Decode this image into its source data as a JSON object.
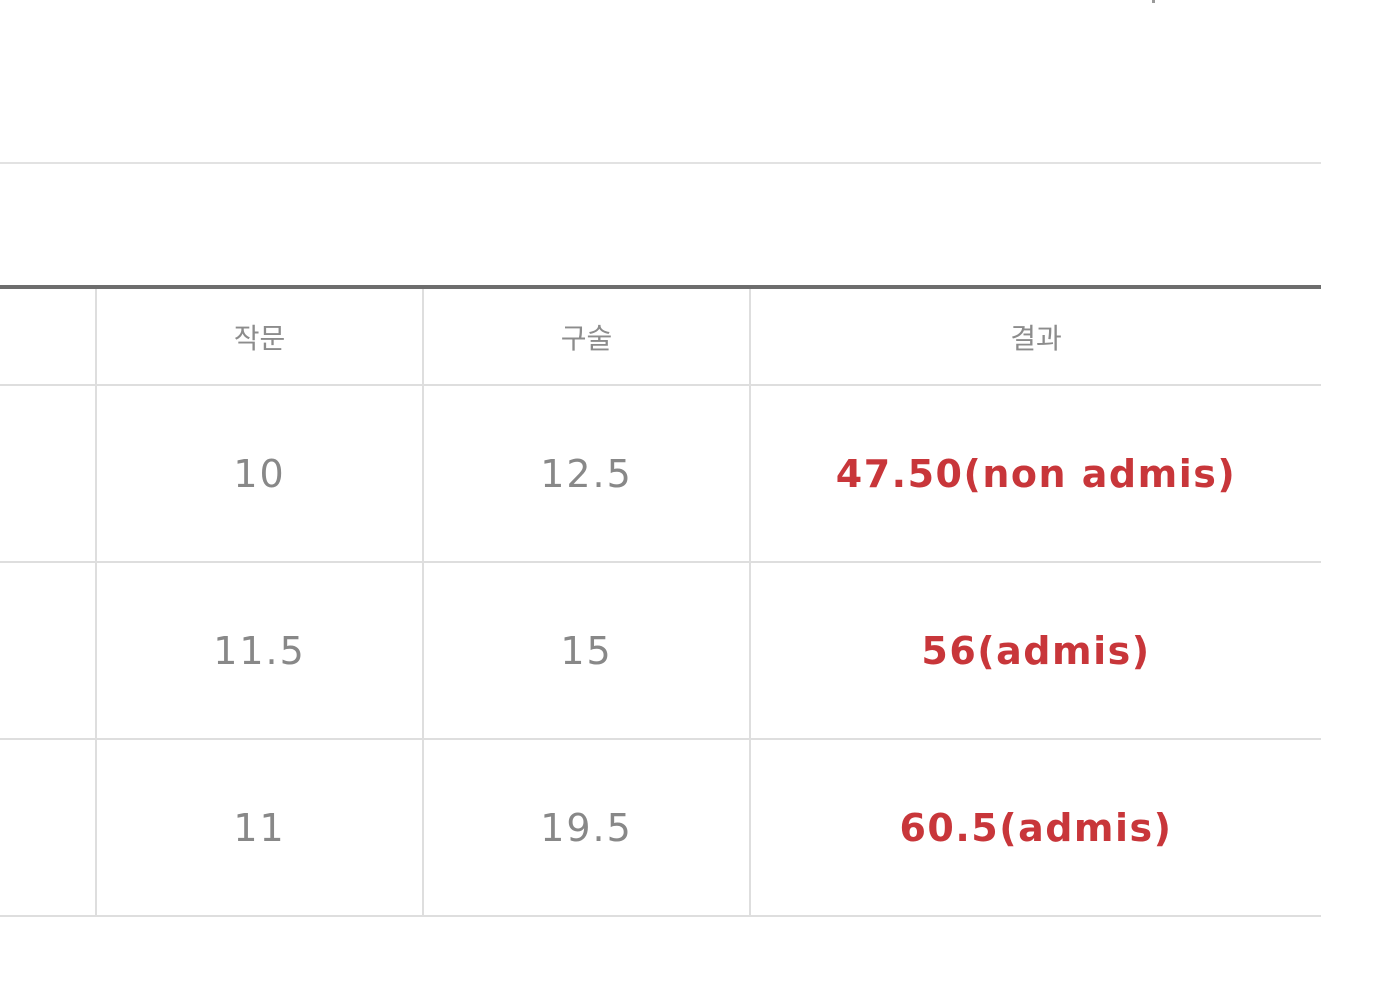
{
  "table": {
    "headers": [
      "",
      "작문",
      "구술",
      "결과"
    ],
    "rows": [
      {
        "first": "",
        "writing": "10",
        "oral": "12.5",
        "result": "47.50(non admis)"
      },
      {
        "first": "",
        "writing": "11.5",
        "oral": "15",
        "result": "56(admis)"
      },
      {
        "first": "",
        "writing": "11",
        "oral": "19.5",
        "result": "60.5(admis)"
      }
    ]
  },
  "colors": {
    "result_text": "#c8363a",
    "value_text": "#888888",
    "header_text": "#8c8c8c",
    "header_rule": "#6d6d6d",
    "grid_line": "#dedede"
  }
}
